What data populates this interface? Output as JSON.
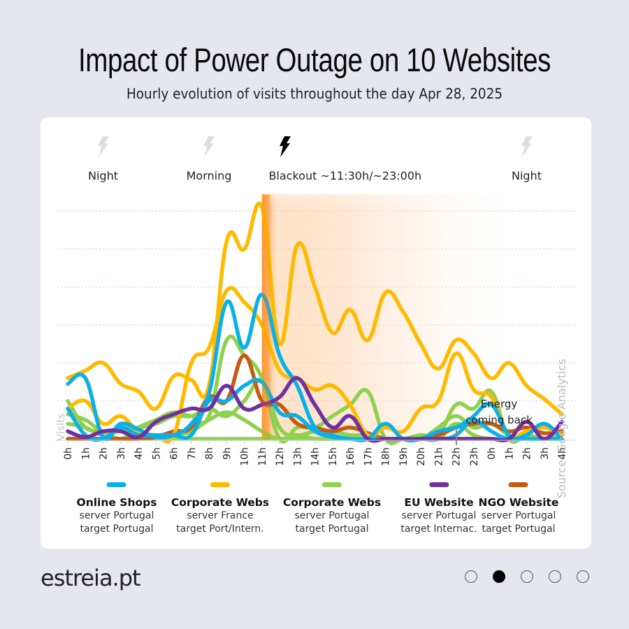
{
  "header": {
    "title": "Impact of Power Outage on 10 Websites",
    "subtitle": "Hourly evolution of visits throughout the day Apr 28, 2025"
  },
  "periods": [
    {
      "label": "Night",
      "icon": "lightning-icon",
      "active": false,
      "hour": 2
    },
    {
      "label": "Morning",
      "icon": "lightning-icon",
      "active": false,
      "hour": 8
    },
    {
      "label": "Blackout ~11:30h/~23:00h",
      "icon": "lightning-icon",
      "active": true,
      "hour": 11.2
    },
    {
      "label": "Night",
      "icon": "lightning-icon",
      "active": false,
      "hour": 26
    }
  ],
  "annotation": {
    "text_line1": "Energy",
    "text_line2": "coming back"
  },
  "source": "Source: Google Analytics",
  "legend": [
    {
      "name": "Online Shops",
      "line1": "server Portugal",
      "line2": "target Portugal",
      "color": "#0bb0ea"
    },
    {
      "name": "Corporate Webs",
      "line1": "server France",
      "line2": "target Port/Intern.",
      "color": "#ffba00"
    },
    {
      "name": "Corporate Webs",
      "line1": "server Portugal",
      "line2": "target Portugal",
      "color": "#8fd14f"
    },
    {
      "name": "EU Website",
      "line1": "server Portugal",
      "line2": "target Internac.",
      "color": "#7030a0"
    },
    {
      "name": "NGO Website",
      "line1": "server Portugal",
      "line2": "target Portugal",
      "color": "#c55a11"
    }
  ],
  "footer": {
    "logo": "estreia.pt",
    "pager": {
      "count": 5,
      "active_index": 1
    }
  },
  "chart_data": {
    "type": "line",
    "title": "Impact of Power Outage on 10 Websites",
    "subtitle": "Hourly evolution of visits throughout the day Apr 28, 2025",
    "xlabel": "",
    "ylabel": "Visits",
    "y_unit": "relative visits (gridline units, no numeric scale shown)",
    "ylim": [
      0,
      6
    ],
    "grid": true,
    "legend_position": "bottom",
    "x": [
      "0h",
      "1h",
      "2h",
      "3h",
      "4h",
      "5h",
      "6h",
      "7h",
      "8h",
      "9h",
      "10h",
      "11h",
      "12h",
      "13h",
      "14h",
      "15h",
      "16h",
      "17h",
      "18h",
      "19h",
      "20h",
      "21h",
      "22h",
      "23h",
      "0h",
      "1h",
      "2h",
      "3h",
      "4h"
    ],
    "highlight": {
      "label": "Blackout ~11:30h/~23:00h",
      "start_hour": 11.0,
      "end_hour": 23.5,
      "color": "#ff8a1e"
    },
    "series": [
      {
        "name": "Corporate Webs (server France, target Port/Intern.) A",
        "color": "#ffba00",
        "values": [
          1.6,
          1.8,
          2.0,
          1.45,
          1.25,
          0.8,
          1.65,
          1.55,
          1.4,
          5.2,
          5.0,
          6.1,
          2.5,
          5.1,
          4.0,
          2.8,
          3.4,
          2.6,
          3.85,
          3.35,
          2.5,
          1.85,
          2.6,
          2.25,
          1.6,
          2.0,
          1.4,
          1.05,
          0.65
        ]
      },
      {
        "name": "Corporate Webs (server France, target Port/Intern.) B",
        "color": "#ffba00",
        "values": [
          0.8,
          1.0,
          0.4,
          0.6,
          0.2,
          0.1,
          0.1,
          2.0,
          2.4,
          3.9,
          3.6,
          3.0,
          1.8,
          1.6,
          1.3,
          1.4,
          0.9,
          0.1,
          0.3,
          0.2,
          0.8,
          1.0,
          2.25,
          1.3,
          1.1,
          0.1,
          0.2,
          0.3,
          0.1
        ]
      },
      {
        "name": "Online Shops A",
        "color": "#0bb0ea",
        "values": [
          1.45,
          1.6,
          0.05,
          0.4,
          0.25,
          0.05,
          0.1,
          0.4,
          1.2,
          3.6,
          2.4,
          3.8,
          2.2,
          1.4,
          0.3,
          0.1,
          0.0,
          0.0,
          0.0,
          0.0,
          0.0,
          0.0,
          0.1,
          0.6,
          0.9,
          0.1,
          0.0,
          0.0,
          0.0
        ]
      },
      {
        "name": "Online Shops B",
        "color": "#0bb0ea",
        "values": [
          0.8,
          0.1,
          0.0,
          0.3,
          0.1,
          0.1,
          0.1,
          0.1,
          1.0,
          1.0,
          1.4,
          1.5,
          0.7,
          0.6,
          0.2,
          0.05,
          0.0,
          0.0,
          0.4,
          0.0,
          0.0,
          0.2,
          0.3,
          0.5,
          0.2,
          0.0,
          0.1,
          0.4,
          0.0
        ]
      },
      {
        "name": "Corporate Webs (server Portugal) A",
        "color": "#8fd14f",
        "values": [
          1.0,
          0.3,
          0.2,
          0.0,
          0.3,
          0.5,
          0.7,
          0.6,
          0.6,
          2.6,
          2.2,
          1.6,
          0.0,
          0.3,
          0.3,
          0.6,
          0.9,
          1.25,
          0.0,
          0.0,
          0.1,
          0.1,
          0.9,
          0.8,
          1.25,
          0.0,
          0.1,
          0.0,
          0.1
        ]
      },
      {
        "name": "Corporate Webs (server Portugal) B",
        "color": "#8fd14f",
        "values": [
          0.65,
          0.5,
          0.2,
          0.3,
          0.3,
          0.4,
          0.6,
          0.6,
          0.8,
          0.6,
          1.0,
          1.5,
          0.3,
          0.1,
          0.2,
          0.2,
          0.1,
          0.1,
          0.0,
          0.0,
          0.0,
          0.3,
          0.6,
          0.3,
          0.4,
          0.1,
          0.0,
          0.0,
          0.0
        ]
      },
      {
        "name": "Corporate Webs (server Portugal) C",
        "color": "#8fd14f",
        "values": [
          0.4,
          0.3,
          0.1,
          0.2,
          0.1,
          0.1,
          0.1,
          0.2,
          0.5,
          0.7,
          0.5,
          0.2,
          0.0,
          0.1,
          0.0,
          0.0,
          0.0,
          0.0,
          0.0,
          0.0,
          0.0,
          0.0,
          0.4,
          0.1,
          0.0,
          0.0,
          0.0,
          0.0,
          0.0
        ]
      },
      {
        "name": "Corporate Webs (server Portugal) D",
        "color": "#8fd14f",
        "values": [
          0.0,
          0.0,
          0.0,
          0.0,
          0.0,
          0.0,
          0.0,
          0.0,
          0.0,
          0.0,
          0.0,
          0.0,
          0.0,
          0.0,
          0.0,
          0.0,
          0.0,
          0.0,
          0.0,
          0.0,
          0.0,
          0.0,
          0.0,
          0.0,
          0.0,
          0.0,
          0.0,
          0.0,
          0.0
        ]
      },
      {
        "name": "EU Website",
        "color": "#7030a0",
        "values": [
          0.2,
          0.05,
          0.2,
          0.2,
          0.05,
          0.45,
          0.65,
          0.8,
          0.8,
          1.4,
          0.8,
          0.9,
          1.1,
          1.6,
          0.9,
          0.3,
          0.6,
          0.0,
          0.0,
          0.0,
          0.0,
          0.0,
          0.0,
          0.0,
          0.0,
          0.0,
          0.45,
          0.0,
          0.45
        ]
      },
      {
        "name": "NGO Website",
        "color": "#c55a11",
        "values": [
          0.0,
          0.0,
          0.0,
          0.0,
          0.0,
          0.05,
          0.2,
          0.3,
          1.1,
          1.0,
          2.2,
          1.0,
          0.9,
          0.4,
          0.3,
          0.2,
          0.3,
          0.15,
          0.0,
          0.0,
          0.0,
          0.1,
          0.3,
          0.4,
          0.4,
          0.2,
          0.3,
          0.15,
          0.2
        ]
      }
    ]
  }
}
